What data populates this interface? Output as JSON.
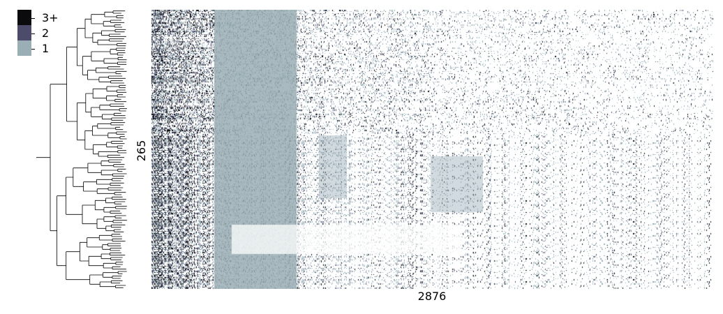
{
  "chart_data": {
    "type": "heatmap",
    "n_rows": 265,
    "n_cols": 2876,
    "ylabel": "265",
    "xlabel": "2876",
    "row_dendrogram": true,
    "legend": {
      "placement": "top-left",
      "entries": [
        {
          "label": "3+",
          "value": 3,
          "color": "#0b0b0e"
        },
        {
          "label": "2",
          "value": 2,
          "color": "#4c4b6b"
        },
        {
          "label": "1",
          "value": 1,
          "color": "#9aaeb5"
        }
      ],
      "zero_color": "#ffffff"
    }
  }
}
